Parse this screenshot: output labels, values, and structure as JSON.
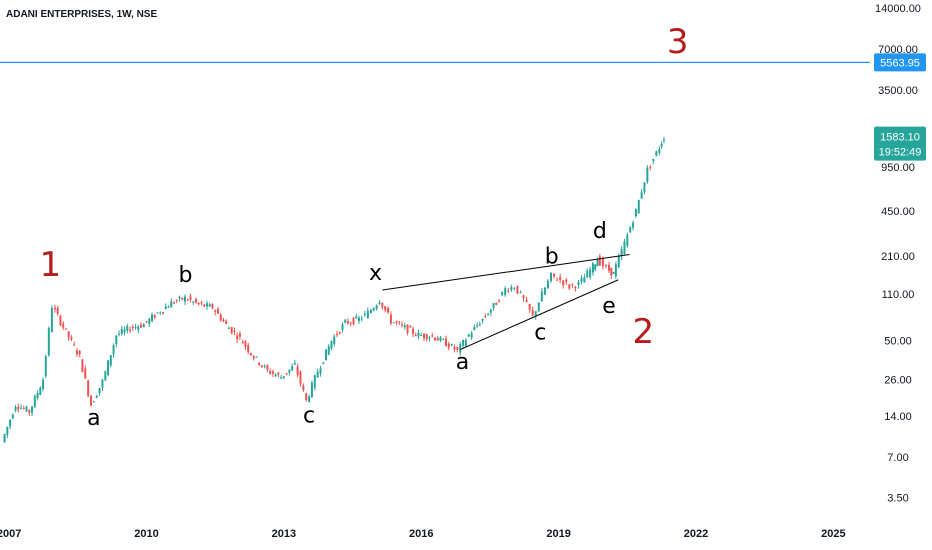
{
  "chart_data": {
    "type": "line",
    "title": "ADANI ENTERPRISES, 1W, NSE",
    "y_scale": "log",
    "ylim": [
      2.4,
      16000
    ],
    "xlim": [
      2006.8,
      2025.8
    ],
    "y_ticks": [
      "14000.00",
      "7000.00",
      "3500.00",
      "950.00",
      "450.00",
      "210.00",
      "110.00",
      "50.00",
      "26.00",
      "14.00",
      "7.00",
      "3.50"
    ],
    "x_ticks": [
      "2007",
      "2010",
      "2013",
      "2016",
      "2019",
      "2022",
      "2025"
    ],
    "series": [
      {
        "values": [
          [
            2006.9,
            9
          ],
          [
            2007.2,
            17
          ],
          [
            2007.5,
            15
          ],
          [
            2007.8,
            26
          ],
          [
            2008.0,
            90
          ],
          [
            2008.3,
            58
          ],
          [
            2008.6,
            38
          ],
          [
            2008.85,
            17
          ],
          [
            2009.1,
            25
          ],
          [
            2009.4,
            55
          ],
          [
            2009.7,
            62
          ],
          [
            2010.0,
            66
          ],
          [
            2010.3,
            80
          ],
          [
            2010.6,
            95
          ],
          [
            2010.9,
            103
          ],
          [
            2011.2,
            92
          ],
          [
            2011.5,
            88
          ],
          [
            2011.8,
            65
          ],
          [
            2012.1,
            52
          ],
          [
            2012.4,
            38
          ],
          [
            2012.7,
            30
          ],
          [
            2013.0,
            27
          ],
          [
            2013.3,
            33
          ],
          [
            2013.55,
            18
          ],
          [
            2013.8,
            30
          ],
          [
            2014.1,
            50
          ],
          [
            2014.4,
            68
          ],
          [
            2014.7,
            72
          ],
          [
            2014.9,
            80
          ],
          [
            2015.15,
            100
          ],
          [
            2015.4,
            70
          ],
          [
            2015.7,
            62
          ],
          [
            2016.0,
            55
          ],
          [
            2016.3,
            54
          ],
          [
            2016.6,
            48
          ],
          [
            2016.85,
            42
          ],
          [
            2017.1,
            55
          ],
          [
            2017.4,
            72
          ],
          [
            2017.7,
            95
          ],
          [
            2017.9,
            120
          ],
          [
            2018.1,
            125
          ],
          [
            2018.3,
            100
          ],
          [
            2018.5,
            75
          ],
          [
            2018.7,
            110
          ],
          [
            2018.9,
            150
          ],
          [
            2019.1,
            140
          ],
          [
            2019.3,
            125
          ],
          [
            2019.5,
            130
          ],
          [
            2019.75,
            165
          ],
          [
            2019.9,
            200
          ],
          [
            2020.1,
            170
          ],
          [
            2020.25,
            155
          ],
          [
            2020.5,
            260
          ],
          [
            2020.75,
            450
          ],
          [
            2021.0,
            900
          ],
          [
            2021.2,
            1200
          ],
          [
            2021.35,
            1583.1
          ]
        ]
      }
    ],
    "last_price": "1583.10",
    "countdown": "19:52:49",
    "hline_value": 5563.95,
    "hline_label": "5563.95",
    "wave_labels": [
      {
        "text": "1",
        "x": 2007.9,
        "y": 150,
        "color": "#b71c1c"
      },
      {
        "text": "a",
        "x": 2008.85,
        "y": 12,
        "color": "#000000"
      },
      {
        "text": "b",
        "x": 2010.85,
        "y": 135,
        "color": "#000000"
      },
      {
        "text": "c",
        "x": 2013.55,
        "y": 12.5,
        "color": "#000000"
      },
      {
        "text": "x",
        "x": 2015.0,
        "y": 140,
        "color": "#000000"
      },
      {
        "text": "a",
        "x": 2016.9,
        "y": 31,
        "color": "#000000"
      },
      {
        "text": "b",
        "x": 2018.85,
        "y": 185,
        "color": "#000000"
      },
      {
        "text": "c",
        "x": 2018.6,
        "y": 51,
        "color": "#000000"
      },
      {
        "text": "d",
        "x": 2019.9,
        "y": 285,
        "color": "#000000"
      },
      {
        "text": "e",
        "x": 2020.1,
        "y": 80,
        "color": "#000000"
      },
      {
        "text": "2",
        "x": 2020.85,
        "y": 48,
        "color": "#b71c1c"
      },
      {
        "text": "3",
        "x": 2021.6,
        "y": 6500,
        "color": "#b71c1c"
      }
    ],
    "trend_lines": [
      {
        "from": [
          2015.15,
          118
        ],
        "to": [
          2020.55,
          215
        ]
      },
      {
        "from": [
          2016.85,
          43
        ],
        "to": [
          2020.3,
          140
        ]
      }
    ],
    "colors": {
      "up": "#26a69a",
      "down": "#ef5350",
      "hline": "#2196f3",
      "wave_red": "#b71c1c",
      "trend": "#000000"
    }
  }
}
